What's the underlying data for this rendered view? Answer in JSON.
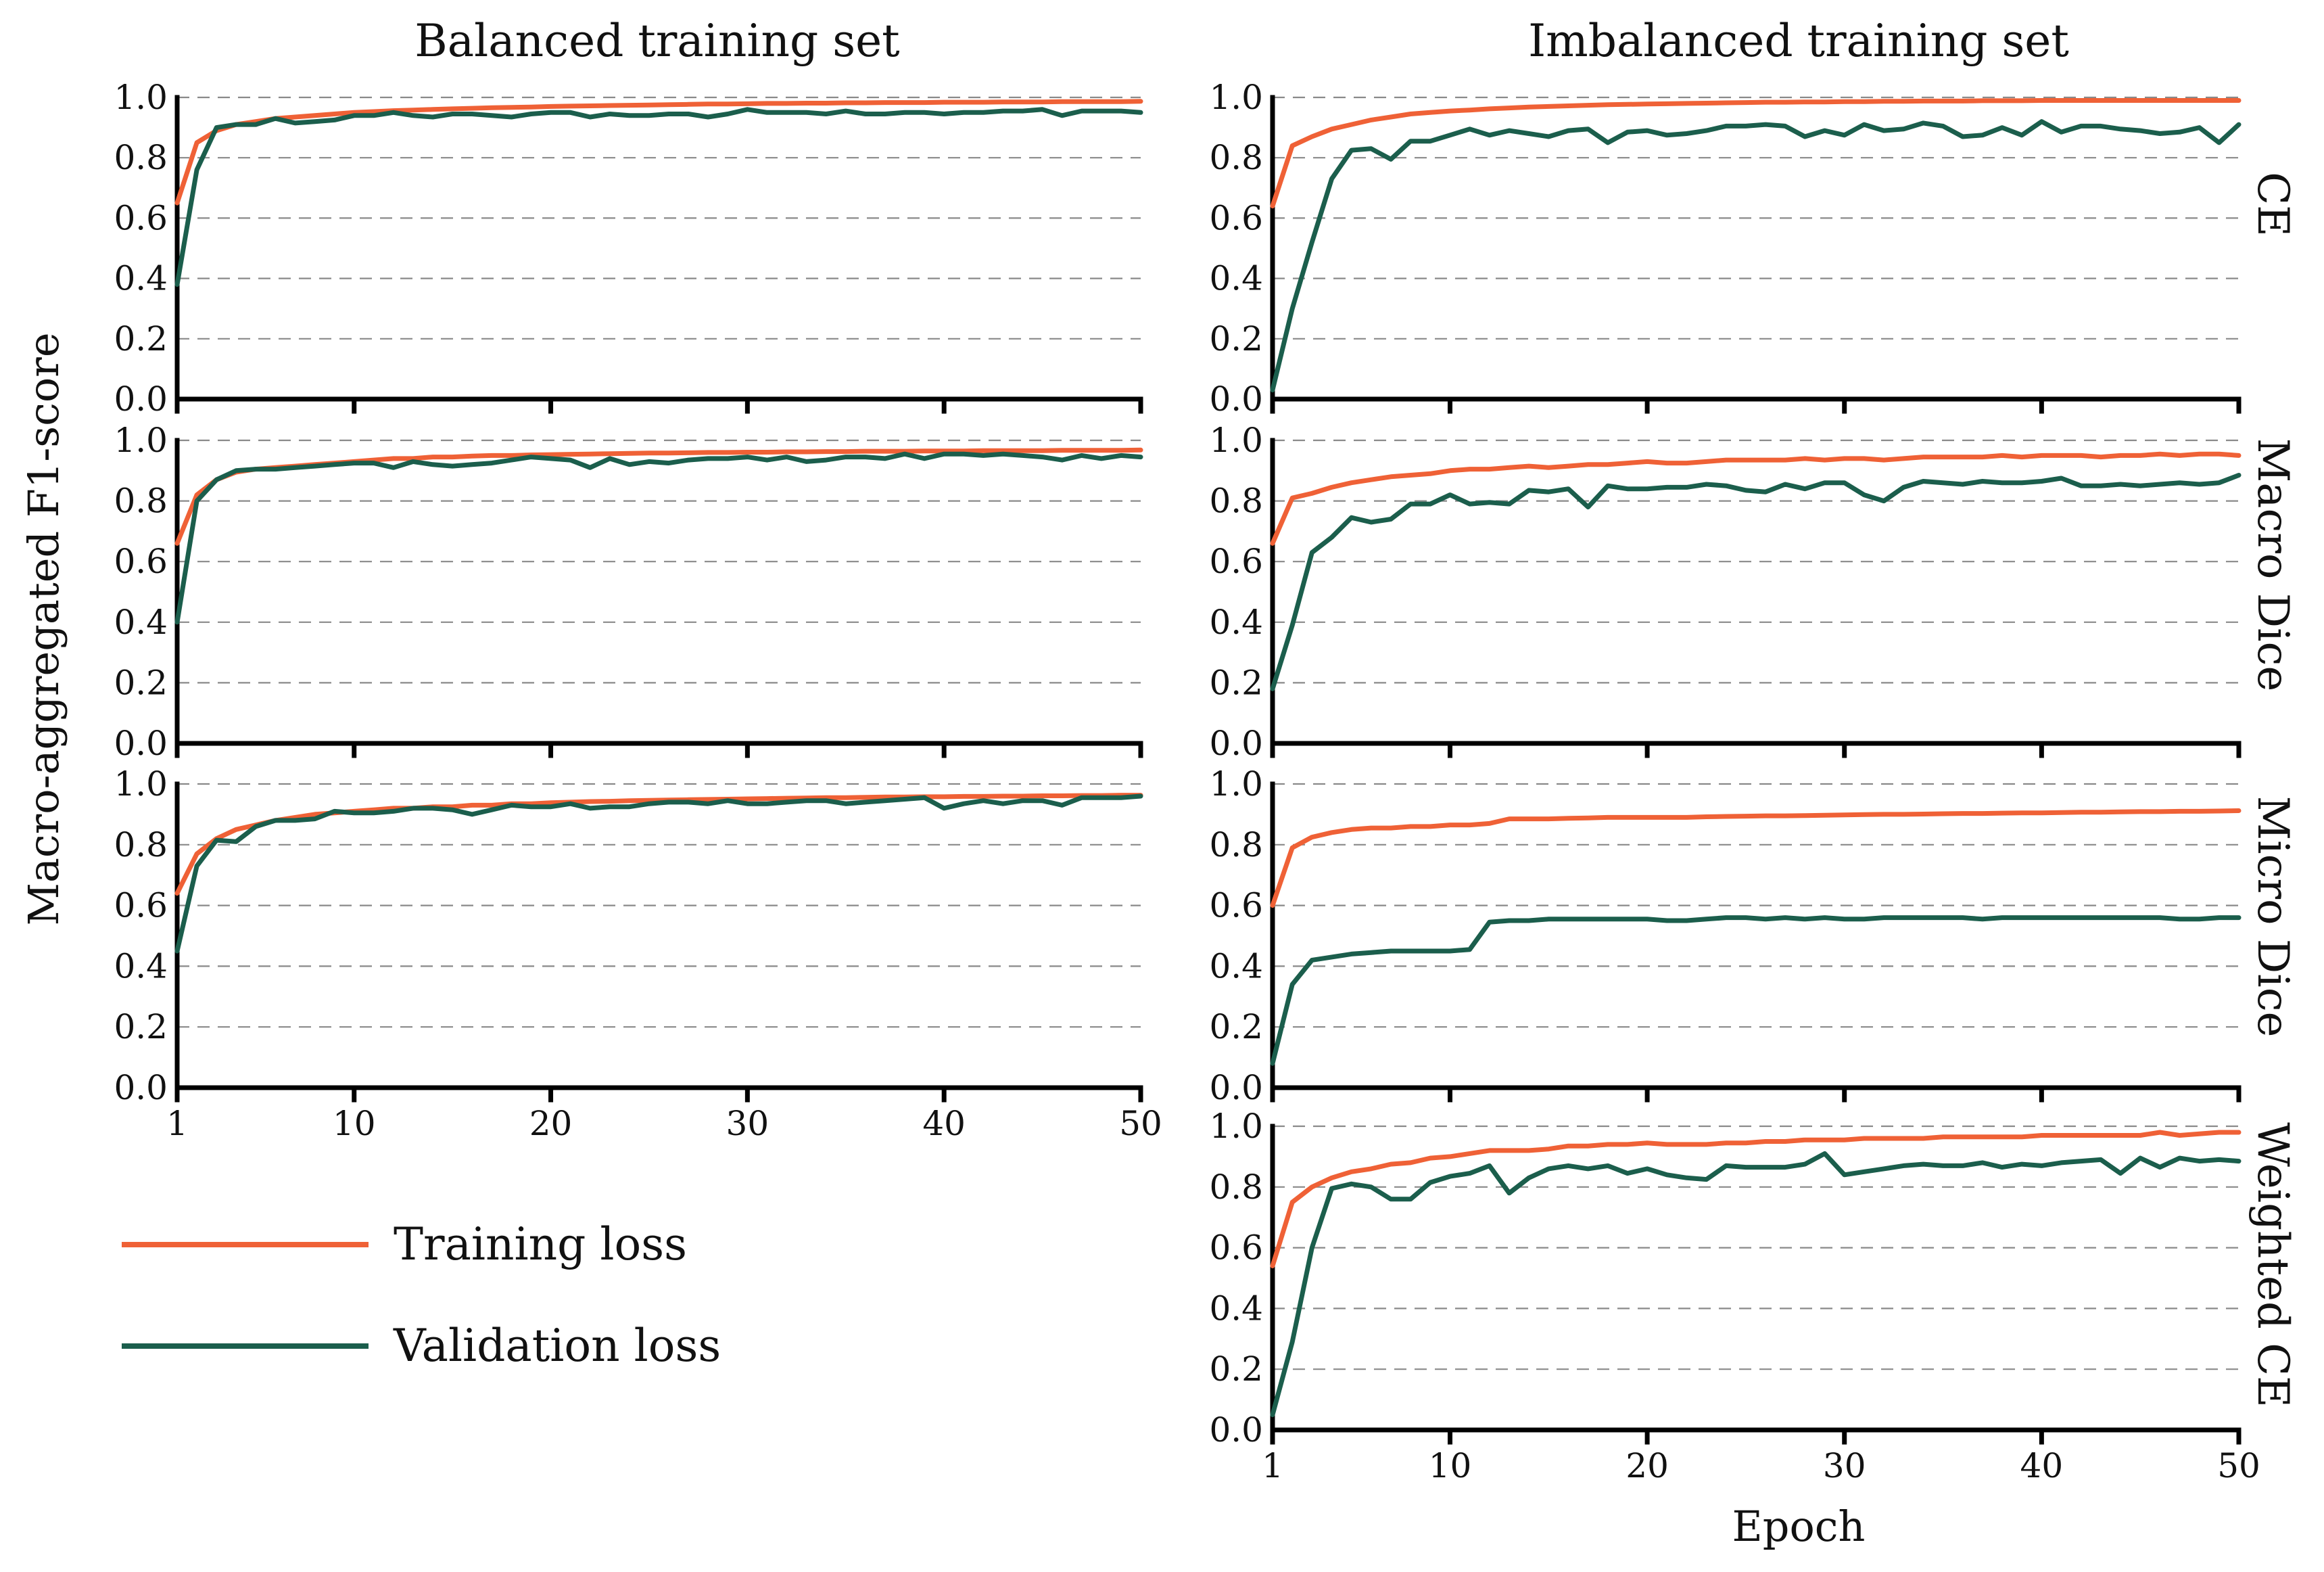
{
  "figure": {
    "col_titles": [
      "Balanced training set",
      "Imbalanced training set"
    ],
    "ylabel": "Macro-aggregated F1-score",
    "xlabel": "Epoch",
    "row_labels": [
      "CE",
      "Macro Dice",
      "Micro Dice",
      "Weighted CE"
    ],
    "legend": [
      {
        "label": "Training loss",
        "color": "#ef6136"
      },
      {
        "label": "Validation loss",
        "color": "#1b5e4c"
      }
    ],
    "colors": {
      "train": "#ef6136",
      "val": "#1b5e4c"
    }
  },
  "chart_data": [
    {
      "type": "line",
      "panel": "Balanced training set / CE",
      "xlabel": "Epoch",
      "ylabel": "Macro-aggregated F1-score",
      "xlim": [
        1,
        50
      ],
      "ylim": [
        0,
        1
      ],
      "x_ticks": [
        1,
        10,
        20,
        30,
        40,
        50
      ],
      "y_ticks": [
        0.0,
        0.2,
        0.4,
        0.6,
        0.8,
        1.0
      ],
      "show_x_ticks": false,
      "series": [
        {
          "name": "Training loss",
          "values": [
            0.65,
            0.85,
            0.89,
            0.91,
            0.92,
            0.93,
            0.935,
            0.94,
            0.945,
            0.95,
            0.953,
            0.956,
            0.958,
            0.96,
            0.962,
            0.964,
            0.966,
            0.967,
            0.968,
            0.97,
            0.971,
            0.972,
            0.973,
            0.974,
            0.975,
            0.976,
            0.977,
            0.978,
            0.978,
            0.979,
            0.98,
            0.98,
            0.981,
            0.981,
            0.982,
            0.982,
            0.983,
            0.983,
            0.983,
            0.984,
            0.984,
            0.984,
            0.985,
            0.985,
            0.985,
            0.986,
            0.986,
            0.986,
            0.986,
            0.987
          ]
        },
        {
          "name": "Validation loss",
          "values": [
            0.38,
            0.76,
            0.9,
            0.91,
            0.91,
            0.93,
            0.915,
            0.92,
            0.925,
            0.94,
            0.94,
            0.95,
            0.94,
            0.935,
            0.945,
            0.945,
            0.94,
            0.935,
            0.945,
            0.95,
            0.95,
            0.935,
            0.945,
            0.94,
            0.94,
            0.945,
            0.945,
            0.935,
            0.945,
            0.96,
            0.95,
            0.95,
            0.95,
            0.945,
            0.955,
            0.945,
            0.945,
            0.95,
            0.95,
            0.945,
            0.95,
            0.95,
            0.955,
            0.955,
            0.96,
            0.94,
            0.955,
            0.955,
            0.955,
            0.95
          ]
        }
      ]
    },
    {
      "type": "line",
      "panel": "Imbalanced training set / CE",
      "xlabel": "Epoch",
      "ylabel": "Macro-aggregated F1-score",
      "xlim": [
        1,
        50
      ],
      "ylim": [
        0,
        1
      ],
      "x_ticks": [
        1,
        10,
        20,
        30,
        40,
        50
      ],
      "y_ticks": [
        0.0,
        0.2,
        0.4,
        0.6,
        0.8,
        1.0
      ],
      "show_x_ticks": false,
      "series": [
        {
          "name": "Training loss",
          "values": [
            0.64,
            0.84,
            0.87,
            0.895,
            0.91,
            0.925,
            0.935,
            0.945,
            0.95,
            0.955,
            0.958,
            0.962,
            0.965,
            0.968,
            0.97,
            0.972,
            0.974,
            0.976,
            0.977,
            0.978,
            0.979,
            0.98,
            0.981,
            0.982,
            0.983,
            0.984,
            0.984,
            0.985,
            0.985,
            0.986,
            0.986,
            0.987,
            0.987,
            0.988,
            0.988,
            0.988,
            0.989,
            0.989,
            0.989,
            0.99,
            0.99,
            0.99,
            0.99,
            0.99,
            0.99,
            0.99,
            0.99,
            0.99,
            0.99,
            0.99
          ]
        },
        {
          "name": "Validation loss",
          "values": [
            0.03,
            0.3,
            0.52,
            0.73,
            0.825,
            0.83,
            0.795,
            0.855,
            0.855,
            0.875,
            0.895,
            0.875,
            0.89,
            0.88,
            0.87,
            0.89,
            0.895,
            0.85,
            0.885,
            0.89,
            0.875,
            0.88,
            0.89,
            0.905,
            0.905,
            0.91,
            0.905,
            0.87,
            0.89,
            0.875,
            0.91,
            0.89,
            0.895,
            0.915,
            0.905,
            0.87,
            0.875,
            0.9,
            0.875,
            0.92,
            0.885,
            0.905,
            0.905,
            0.895,
            0.89,
            0.88,
            0.885,
            0.9,
            0.85,
            0.91
          ]
        }
      ]
    },
    {
      "type": "line",
      "panel": "Balanced training set / Macro Dice",
      "xlabel": "Epoch",
      "ylabel": "Macro-aggregated F1-score",
      "xlim": [
        1,
        50
      ],
      "ylim": [
        0,
        1
      ],
      "x_ticks": [
        1,
        10,
        20,
        30,
        40,
        50
      ],
      "y_ticks": [
        0.0,
        0.2,
        0.4,
        0.6,
        0.8,
        1.0
      ],
      "show_x_ticks": false,
      "series": [
        {
          "name": "Training loss",
          "values": [
            0.66,
            0.82,
            0.87,
            0.895,
            0.905,
            0.91,
            0.915,
            0.92,
            0.925,
            0.93,
            0.935,
            0.94,
            0.94,
            0.945,
            0.945,
            0.948,
            0.95,
            0.95,
            0.952,
            0.953,
            0.954,
            0.955,
            0.956,
            0.957,
            0.958,
            0.958,
            0.959,
            0.96,
            0.96,
            0.961,
            0.961,
            0.962,
            0.962,
            0.963,
            0.963,
            0.964,
            0.964,
            0.964,
            0.965,
            0.965,
            0.965,
            0.966,
            0.966,
            0.966,
            0.966,
            0.967,
            0.967,
            0.967,
            0.967,
            0.968
          ]
        },
        {
          "name": "Validation loss",
          "values": [
            0.4,
            0.8,
            0.87,
            0.9,
            0.905,
            0.905,
            0.91,
            0.915,
            0.92,
            0.925,
            0.925,
            0.91,
            0.93,
            0.92,
            0.915,
            0.92,
            0.925,
            0.935,
            0.945,
            0.94,
            0.935,
            0.91,
            0.94,
            0.92,
            0.93,
            0.925,
            0.935,
            0.94,
            0.94,
            0.945,
            0.935,
            0.945,
            0.93,
            0.935,
            0.945,
            0.945,
            0.94,
            0.955,
            0.94,
            0.955,
            0.955,
            0.95,
            0.955,
            0.95,
            0.945,
            0.935,
            0.95,
            0.94,
            0.95,
            0.945
          ]
        }
      ]
    },
    {
      "type": "line",
      "panel": "Imbalanced training set / Macro Dice",
      "xlabel": "Epoch",
      "ylabel": "Macro-aggregated F1-score",
      "xlim": [
        1,
        50
      ],
      "ylim": [
        0,
        1
      ],
      "x_ticks": [
        1,
        10,
        20,
        30,
        40,
        50
      ],
      "y_ticks": [
        0.0,
        0.2,
        0.4,
        0.6,
        0.8,
        1.0
      ],
      "show_x_ticks": false,
      "series": [
        {
          "name": "Training loss",
          "values": [
            0.66,
            0.81,
            0.825,
            0.845,
            0.86,
            0.87,
            0.88,
            0.885,
            0.89,
            0.9,
            0.905,
            0.905,
            0.91,
            0.915,
            0.91,
            0.915,
            0.92,
            0.92,
            0.925,
            0.93,
            0.925,
            0.925,
            0.93,
            0.935,
            0.935,
            0.935,
            0.935,
            0.94,
            0.935,
            0.94,
            0.94,
            0.935,
            0.94,
            0.945,
            0.945,
            0.945,
            0.945,
            0.95,
            0.945,
            0.95,
            0.95,
            0.95,
            0.945,
            0.95,
            0.95,
            0.955,
            0.95,
            0.955,
            0.955,
            0.95
          ]
        },
        {
          "name": "Validation loss",
          "values": [
            0.18,
            0.39,
            0.63,
            0.68,
            0.745,
            0.73,
            0.74,
            0.79,
            0.79,
            0.82,
            0.79,
            0.795,
            0.79,
            0.835,
            0.83,
            0.84,
            0.78,
            0.85,
            0.84,
            0.84,
            0.845,
            0.845,
            0.855,
            0.85,
            0.835,
            0.83,
            0.855,
            0.84,
            0.86,
            0.86,
            0.82,
            0.8,
            0.845,
            0.865,
            0.86,
            0.855,
            0.865,
            0.86,
            0.86,
            0.865,
            0.875,
            0.85,
            0.85,
            0.855,
            0.85,
            0.855,
            0.86,
            0.855,
            0.86,
            0.885
          ]
        }
      ]
    },
    {
      "type": "line",
      "panel": "Balanced training set / Micro Dice",
      "xlabel": "Epoch",
      "ylabel": "Macro-aggregated F1-score",
      "xlim": [
        1,
        50
      ],
      "ylim": [
        0,
        1
      ],
      "x_ticks": [
        1,
        10,
        20,
        30,
        40,
        50
      ],
      "y_ticks": [
        0.0,
        0.2,
        0.4,
        0.6,
        0.8,
        1.0
      ],
      "show_x_ticks": true,
      "series": [
        {
          "name": "Training loss",
          "values": [
            0.64,
            0.77,
            0.82,
            0.85,
            0.865,
            0.88,
            0.89,
            0.9,
            0.905,
            0.91,
            0.915,
            0.92,
            0.92,
            0.925,
            0.925,
            0.93,
            0.93,
            0.935,
            0.935,
            0.938,
            0.94,
            0.942,
            0.943,
            0.945,
            0.946,
            0.947,
            0.948,
            0.949,
            0.95,
            0.951,
            0.952,
            0.953,
            0.954,
            0.955,
            0.955,
            0.956,
            0.957,
            0.957,
            0.958,
            0.958,
            0.959,
            0.959,
            0.96,
            0.96,
            0.961,
            0.961,
            0.962,
            0.962,
            0.963,
            0.963
          ]
        },
        {
          "name": "Validation loss",
          "values": [
            0.45,
            0.73,
            0.815,
            0.81,
            0.86,
            0.88,
            0.88,
            0.885,
            0.91,
            0.905,
            0.905,
            0.91,
            0.92,
            0.92,
            0.915,
            0.9,
            0.915,
            0.93,
            0.925,
            0.925,
            0.935,
            0.92,
            0.925,
            0.925,
            0.935,
            0.94,
            0.94,
            0.935,
            0.945,
            0.935,
            0.935,
            0.94,
            0.945,
            0.945,
            0.935,
            0.94,
            0.945,
            0.95,
            0.955,
            0.92,
            0.935,
            0.945,
            0.935,
            0.945,
            0.945,
            0.93,
            0.955,
            0.955,
            0.955,
            0.96
          ]
        }
      ]
    },
    {
      "type": "line",
      "panel": "Imbalanced training set / Micro Dice",
      "xlabel": "Epoch",
      "ylabel": "Macro-aggregated F1-score",
      "xlim": [
        1,
        50
      ],
      "ylim": [
        0,
        1
      ],
      "x_ticks": [
        1,
        10,
        20,
        30,
        40,
        50
      ],
      "y_ticks": [
        0.0,
        0.2,
        0.4,
        0.6,
        0.8,
        1.0
      ],
      "show_x_ticks": false,
      "series": [
        {
          "name": "Training loss",
          "values": [
            0.6,
            0.79,
            0.825,
            0.84,
            0.85,
            0.855,
            0.855,
            0.86,
            0.86,
            0.865,
            0.865,
            0.87,
            0.885,
            0.885,
            0.885,
            0.887,
            0.888,
            0.89,
            0.89,
            0.89,
            0.89,
            0.89,
            0.892,
            0.893,
            0.894,
            0.895,
            0.895,
            0.896,
            0.897,
            0.898,
            0.899,
            0.9,
            0.9,
            0.901,
            0.902,
            0.903,
            0.903,
            0.904,
            0.905,
            0.905,
            0.906,
            0.907,
            0.907,
            0.908,
            0.909,
            0.909,
            0.91,
            0.91,
            0.911,
            0.912
          ]
        },
        {
          "name": "Validation loss",
          "values": [
            0.08,
            0.34,
            0.42,
            0.43,
            0.44,
            0.445,
            0.45,
            0.45,
            0.45,
            0.45,
            0.455,
            0.545,
            0.55,
            0.55,
            0.555,
            0.555,
            0.555,
            0.555,
            0.555,
            0.555,
            0.55,
            0.55,
            0.555,
            0.56,
            0.56,
            0.555,
            0.56,
            0.555,
            0.56,
            0.555,
            0.555,
            0.56,
            0.56,
            0.56,
            0.56,
            0.56,
            0.555,
            0.56,
            0.56,
            0.56,
            0.56,
            0.56,
            0.56,
            0.56,
            0.56,
            0.56,
            0.555,
            0.555,
            0.56,
            0.56
          ]
        }
      ]
    },
    {
      "type": "line",
      "panel": "Imbalanced training set / Weighted CE",
      "xlabel": "Epoch",
      "ylabel": "Macro-aggregated F1-score",
      "xlim": [
        1,
        50
      ],
      "ylim": [
        0,
        1
      ],
      "x_ticks": [
        1,
        10,
        20,
        30,
        40,
        50
      ],
      "y_ticks": [
        0.0,
        0.2,
        0.4,
        0.6,
        0.8,
        1.0
      ],
      "show_x_ticks": true,
      "series": [
        {
          "name": "Training loss",
          "values": [
            0.54,
            0.75,
            0.8,
            0.83,
            0.85,
            0.86,
            0.875,
            0.88,
            0.895,
            0.9,
            0.91,
            0.92,
            0.92,
            0.92,
            0.925,
            0.935,
            0.935,
            0.94,
            0.94,
            0.945,
            0.94,
            0.94,
            0.94,
            0.945,
            0.945,
            0.95,
            0.95,
            0.955,
            0.955,
            0.955,
            0.96,
            0.96,
            0.96,
            0.96,
            0.965,
            0.965,
            0.965,
            0.965,
            0.965,
            0.97,
            0.97,
            0.97,
            0.97,
            0.97,
            0.97,
            0.98,
            0.97,
            0.975,
            0.98,
            0.98
          ]
        },
        {
          "name": "Validation loss",
          "values": [
            0.05,
            0.29,
            0.6,
            0.795,
            0.81,
            0.8,
            0.76,
            0.76,
            0.815,
            0.835,
            0.845,
            0.87,
            0.78,
            0.83,
            0.86,
            0.87,
            0.86,
            0.87,
            0.845,
            0.86,
            0.84,
            0.83,
            0.825,
            0.87,
            0.865,
            0.865,
            0.865,
            0.875,
            0.91,
            0.84,
            0.85,
            0.86,
            0.87,
            0.875,
            0.87,
            0.87,
            0.88,
            0.865,
            0.875,
            0.87,
            0.88,
            0.885,
            0.89,
            0.845,
            0.895,
            0.865,
            0.895,
            0.885,
            0.89,
            0.885
          ]
        }
      ]
    }
  ]
}
